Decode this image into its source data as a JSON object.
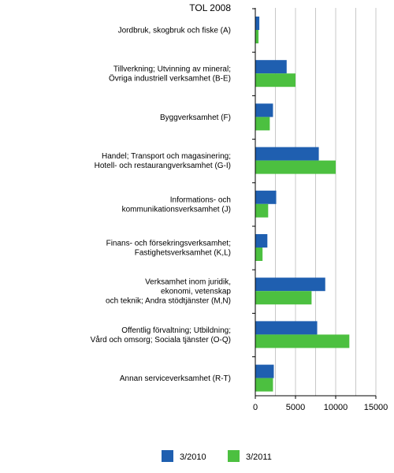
{
  "chart_data": {
    "type": "bar",
    "orientation": "horizontal",
    "corner_title": "TOL 2008",
    "categories": [
      [
        "Jordbruk, skogbruk och fiske (A)"
      ],
      [
        "Tillverkning; Utvinning av mineral;",
        "Övriga industriell verksamhet (B-E)"
      ],
      [
        "Byggverksamhet (F)"
      ],
      [
        "Handel; Transport och magasinering;",
        "Hotell- och restaurangverksamhet (G-I)"
      ],
      [
        "Informations- och",
        "kommunikationsverksamhet (J)"
      ],
      [
        "Finans- och försekringsverksamhet;",
        "Fastighetsverksamhet (K,L)"
      ],
      [
        "Verksamhet inom juridik,",
        "ekonomi, vetenskap",
        "och teknik; Andra stödtjänster (M,N)"
      ],
      [
        "Offentlig förvaltning; Utbildning;",
        "Vård och omsorg; Sociala tjänster (O-Q)"
      ],
      [
        "Annan serviceverksamhet (R-T)"
      ]
    ],
    "series": [
      {
        "name": "3/2010",
        "color": "#1f5fb0",
        "values": [
          500,
          3900,
          2200,
          7900,
          2600,
          1500,
          8700,
          7700,
          2300
        ]
      },
      {
        "name": "3/2011",
        "color": "#4cc040",
        "values": [
          400,
          5000,
          1800,
          10000,
          1600,
          900,
          7000,
          11700,
          2200
        ]
      }
    ],
    "xlim": [
      0,
      15000
    ],
    "xticks": [
      0,
      5000,
      10000,
      15000
    ],
    "grid": true,
    "legend": "bottom"
  }
}
